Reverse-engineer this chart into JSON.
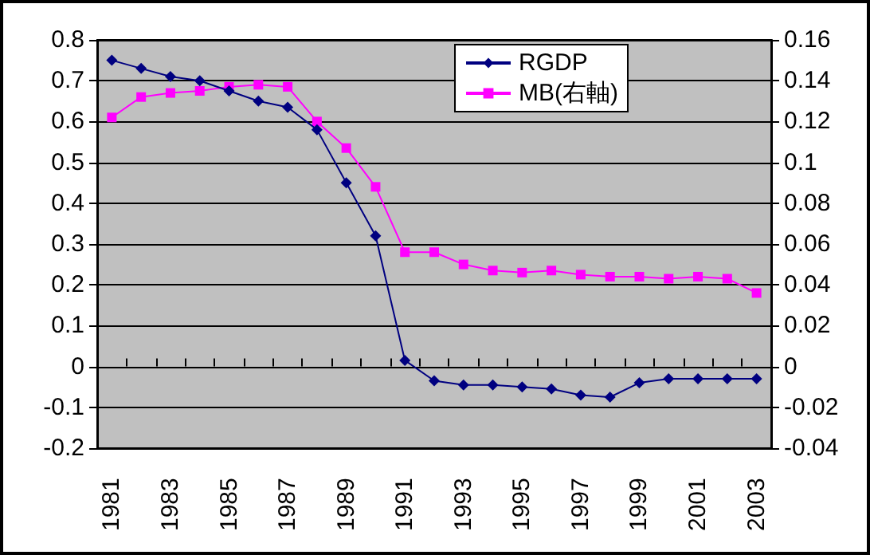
{
  "chart_data": {
    "type": "line",
    "categories": [
      "1981",
      null,
      "1983",
      null,
      "1985",
      null,
      "1987",
      null,
      "1989",
      null,
      "1991",
      null,
      "1993",
      null,
      "1995",
      null,
      "1997",
      null,
      "1999",
      null,
      "2001",
      null,
      "2003"
    ],
    "series": [
      {
        "name": "RGDP",
        "color": "#000080",
        "marker": "diamond",
        "values": [
          0.75,
          0.73,
          0.71,
          0.7,
          0.675,
          0.65,
          0.635,
          0.58,
          0.45,
          0.32,
          0.015,
          -0.035,
          -0.045,
          -0.045,
          -0.05,
          -0.055,
          -0.07,
          -0.075,
          -0.04,
          -0.03,
          -0.03,
          -0.03,
          -0.03
        ]
      },
      {
        "name": "MB(右軸)",
        "color": "#ff00ff",
        "marker": "square",
        "axis": "y2",
        "values": [
          0.122,
          0.132,
          0.134,
          0.135,
          0.137,
          0.138,
          0.137,
          0.12,
          0.107,
          0.088,
          0.056,
          0.056,
          0.05,
          0.047,
          0.046,
          0.047,
          0.045,
          0.044,
          0.044,
          0.043,
          0.044,
          0.043,
          0.036
        ]
      }
    ],
    "ylim": [
      -0.2,
      0.8
    ],
    "yticks": [
      -0.2,
      -0.1,
      0,
      0.1,
      0.2,
      0.3,
      0.4,
      0.5,
      0.6,
      0.7,
      0.8
    ],
    "y2lim": [
      -0.04,
      0.16
    ],
    "y2ticks": [
      -0.04,
      -0.02,
      0,
      0.02,
      0.04,
      0.06,
      0.08,
      0.1,
      0.12,
      0.14,
      0.16
    ],
    "grid": "y",
    "legend": "top right"
  }
}
